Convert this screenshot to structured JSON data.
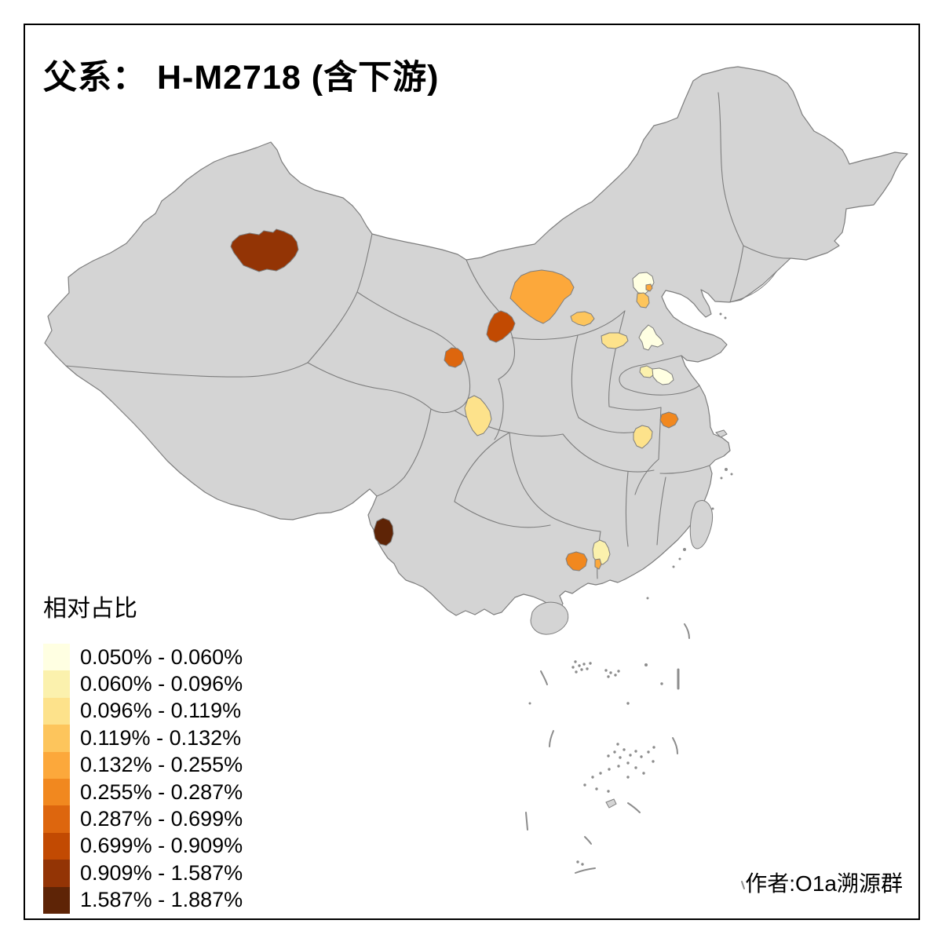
{
  "title": "父系： H-M2718 (含下游)",
  "attribution": "作者:O1a溯源群",
  "legend": {
    "title": "相对占比",
    "classes": [
      {
        "label": "0.050% - 0.060%",
        "color": "#FFFFE2"
      },
      {
        "label": "0.060% - 0.096%",
        "color": "#FBF1AD"
      },
      {
        "label": "0.096% - 0.119%",
        "color": "#FDE28B"
      },
      {
        "label": "0.119% - 0.132%",
        "color": "#FDC55C"
      },
      {
        "label": "0.132% - 0.255%",
        "color": "#FCA83B"
      },
      {
        "label": "0.255% - 0.287%",
        "color": "#F1881F"
      },
      {
        "label": "0.287% - 0.699%",
        "color": "#DD660E"
      },
      {
        "label": "0.699% - 0.909%",
        "color": "#C24A02"
      },
      {
        "label": "0.909% - 1.587%",
        "color": "#933405"
      },
      {
        "label": "1.587% - 1.887%",
        "color": "#5E2406"
      }
    ]
  },
  "map": {
    "background": "#FFFFFF",
    "province_fill": "#D4D4D4",
    "border_color": "#7D7D7D",
    "speck_color": "#8C8C8C",
    "regions": [
      {
        "id": "xinjiang-north",
        "class_index": 8
      },
      {
        "id": "inner-mongolia-west",
        "class_index": 4
      },
      {
        "id": "ningxia",
        "class_index": 7
      },
      {
        "id": "gansu-lanzhou",
        "class_index": 6
      },
      {
        "id": "shanxi-north",
        "class_index": 3
      },
      {
        "id": "shanxi-central",
        "class_index": 2
      },
      {
        "id": "beijing-area",
        "class_index": 0
      },
      {
        "id": "beijing-city",
        "class_index": 4
      },
      {
        "id": "hebei-strip",
        "class_index": 3
      },
      {
        "id": "hebei-south",
        "class_index": 0
      },
      {
        "id": "shandong-west",
        "class_index": 1
      },
      {
        "id": "shandong-central",
        "class_index": 0
      },
      {
        "id": "jiangsu-central",
        "class_index": 5
      },
      {
        "id": "anhui-central",
        "class_index": 2
      },
      {
        "id": "sichuan-north",
        "class_index": 2
      },
      {
        "id": "yunnan-west",
        "class_index": 9
      },
      {
        "id": "guangxi-east",
        "class_index": 5
      },
      {
        "id": "guangdong-central",
        "class_index": 1
      },
      {
        "id": "guangdong-delta",
        "class_index": 4
      }
    ]
  }
}
